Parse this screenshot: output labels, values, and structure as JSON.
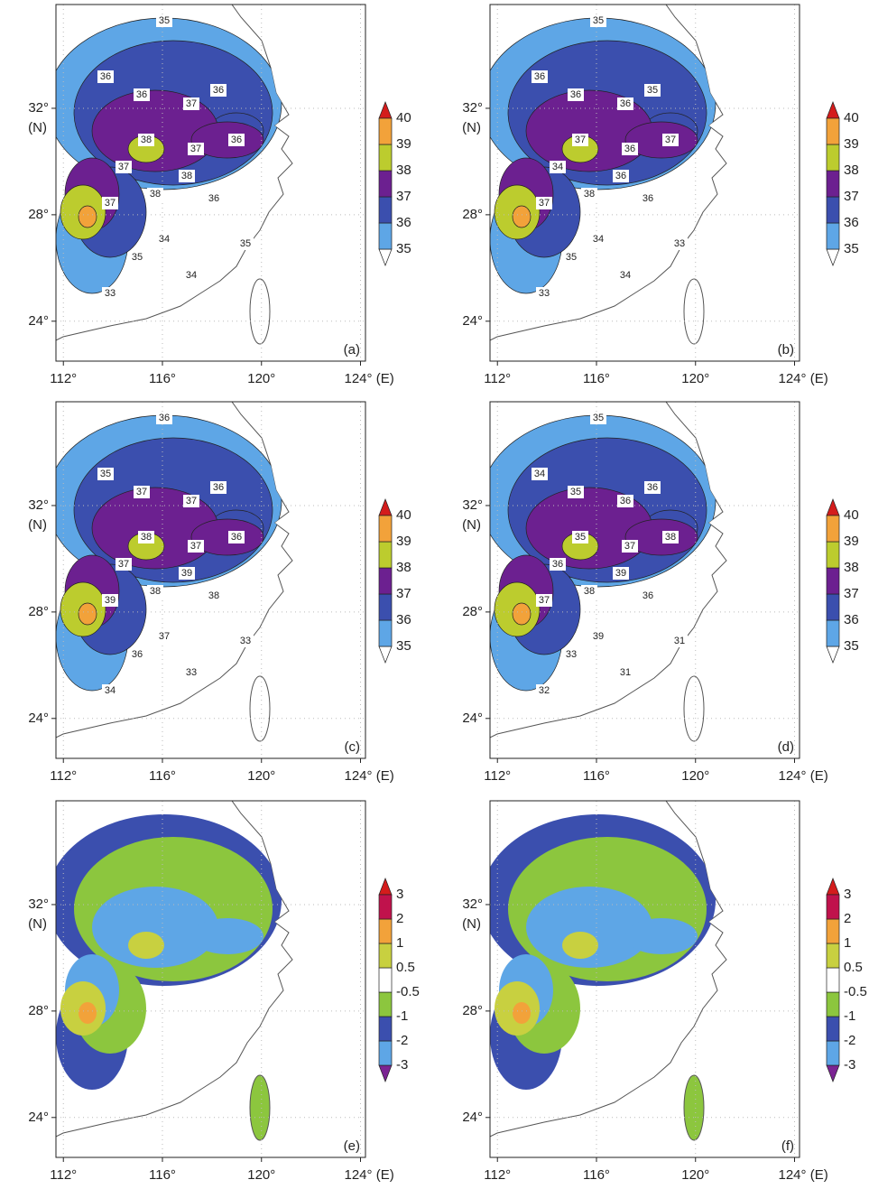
{
  "panels": [
    {
      "label": "(a)",
      "xlim": [
        111.7,
        124.2
      ],
      "ylim": [
        22.5,
        35.9
      ],
      "grid": true,
      "xticks": [
        {
          "value": 112,
          "label": "112°"
        },
        {
          "value": 116,
          "label": "116°"
        },
        {
          "value": 120,
          "label": "120°"
        },
        {
          "value": 124,
          "label": "124° (E)"
        }
      ],
      "yticks": [
        {
          "value": 24,
          "label": "24°"
        },
        {
          "value": 28,
          "label": "28°"
        },
        {
          "value": 32,
          "label": "32°"
        }
      ],
      "y_unit": "(N)",
      "colorbar": {
        "levels": [
          35,
          36,
          37,
          38,
          39,
          40
        ],
        "colors": [
          "#ffffff",
          "#5ea6e6",
          "#3b4fae",
          "#6c2090",
          "#bccc2e",
          "#f2a23a",
          "#d41c1c"
        ]
      },
      "contour_labels": [
        35,
        36,
        36,
        37,
        36,
        38,
        37,
        36,
        37,
        38,
        38,
        37,
        36,
        34,
        35,
        33,
        34,
        35
      ]
    },
    {
      "label": "(b)",
      "xlim": [
        111.7,
        124.2
      ],
      "ylim": [
        22.5,
        35.9
      ],
      "grid": true,
      "xticks": [
        {
          "value": 112,
          "label": "112°"
        },
        {
          "value": 116,
          "label": "116°"
        },
        {
          "value": 120,
          "label": "120°"
        },
        {
          "value": 124,
          "label": "124° (E)"
        }
      ],
      "yticks": [
        {
          "value": 24,
          "label": "24°"
        },
        {
          "value": 28,
          "label": "28°"
        },
        {
          "value": 32,
          "label": "32°"
        }
      ],
      "y_unit": "(N)",
      "colorbar": {
        "levels": [
          35,
          36,
          37,
          38,
          39,
          40
        ],
        "colors": [
          "#ffffff",
          "#5ea6e6",
          "#3b4fae",
          "#6c2090",
          "#bccc2e",
          "#f2a23a",
          "#d41c1c"
        ]
      },
      "contour_labels": [
        35,
        36,
        36,
        36,
        35,
        37,
        36,
        37,
        34,
        36,
        38,
        37,
        36,
        34,
        35,
        33,
        34,
        33
      ]
    },
    {
      "label": "(c)",
      "xlim": [
        111.7,
        124.2
      ],
      "ylim": [
        22.5,
        35.9
      ],
      "grid": true,
      "xticks": [
        {
          "value": 112,
          "label": "112°"
        },
        {
          "value": 116,
          "label": "116°"
        },
        {
          "value": 120,
          "label": "120°"
        },
        {
          "value": 124,
          "label": "124° (E)"
        }
      ],
      "yticks": [
        {
          "value": 24,
          "label": "24°"
        },
        {
          "value": 28,
          "label": "28°"
        },
        {
          "value": 32,
          "label": "32°"
        }
      ],
      "y_unit": "(N)",
      "colorbar": {
        "levels": [
          35,
          36,
          37,
          38,
          39,
          40
        ],
        "colors": [
          "#ffffff",
          "#5ea6e6",
          "#3b4fae",
          "#6c2090",
          "#bccc2e",
          "#f2a23a",
          "#d41c1c"
        ]
      },
      "contour_labels": [
        36,
        35,
        37,
        37,
        36,
        38,
        37,
        36,
        37,
        39,
        38,
        39,
        38,
        37,
        36,
        34,
        33,
        33
      ]
    },
    {
      "label": "(d)",
      "xlim": [
        111.7,
        124.2
      ],
      "ylim": [
        22.5,
        35.9
      ],
      "grid": true,
      "xticks": [
        {
          "value": 112,
          "label": "112°"
        },
        {
          "value": 116,
          "label": "116°"
        },
        {
          "value": 120,
          "label": "120°"
        },
        {
          "value": 124,
          "label": "124° (E)"
        }
      ],
      "yticks": [
        {
          "value": 24,
          "label": "24°"
        },
        {
          "value": 28,
          "label": "28°"
        },
        {
          "value": 32,
          "label": "32°"
        }
      ],
      "y_unit": "(N)",
      "colorbar": {
        "levels": [
          35,
          36,
          37,
          38,
          39,
          40
        ],
        "colors": [
          "#ffffff",
          "#5ea6e6",
          "#3b4fae",
          "#6c2090",
          "#bccc2e",
          "#f2a23a",
          "#d41c1c"
        ]
      },
      "contour_labels": [
        35,
        34,
        35,
        36,
        36,
        35,
        37,
        38,
        36,
        39,
        38,
        37,
        36,
        39,
        33,
        32,
        31,
        31
      ]
    },
    {
      "label": "(e)",
      "xlim": [
        111.7,
        124.2
      ],
      "ylim": [
        22.5,
        35.9
      ],
      "grid": true,
      "xticks": [
        {
          "value": 112,
          "label": "112°"
        },
        {
          "value": 116,
          "label": "116°"
        },
        {
          "value": 120,
          "label": "120°"
        },
        {
          "value": 124,
          "label": "124° (E)"
        }
      ],
      "yticks": [
        {
          "value": 24,
          "label": "24°"
        },
        {
          "value": 28,
          "label": "28°"
        },
        {
          "value": 32,
          "label": "32°"
        }
      ],
      "y_unit": "(N)",
      "colorbar": {
        "levels": [
          -3,
          -2,
          -1,
          -0.5,
          0.5,
          1,
          2,
          3
        ],
        "colors": [
          "#7b2493",
          "#5ea6e6",
          "#3b4fae",
          "#8cc63e",
          "#ffffff",
          "#c8d040",
          "#f2a23a",
          "#c0124c",
          "#d41c1c"
        ]
      },
      "contour_labels": []
    },
    {
      "label": "(f)",
      "xlim": [
        111.7,
        124.2
      ],
      "ylim": [
        22.5,
        35.9
      ],
      "grid": true,
      "xticks": [
        {
          "value": 112,
          "label": "112°"
        },
        {
          "value": 116,
          "label": "116°"
        },
        {
          "value": 120,
          "label": "120°"
        },
        {
          "value": 124,
          "label": "124° (E)"
        }
      ],
      "yticks": [
        {
          "value": 24,
          "label": "24°"
        },
        {
          "value": 28,
          "label": "28°"
        },
        {
          "value": 32,
          "label": "32°"
        }
      ],
      "y_unit": "(N)",
      "colorbar": {
        "levels": [
          -3,
          -2,
          -1,
          -0.5,
          0.5,
          1,
          2,
          3
        ],
        "colors": [
          "#7b2493",
          "#5ea6e6",
          "#3b4fae",
          "#8cc63e",
          "#ffffff",
          "#c8d040",
          "#f2a23a",
          "#c0124c",
          "#d41c1c"
        ]
      },
      "contour_labels": []
    }
  ]
}
